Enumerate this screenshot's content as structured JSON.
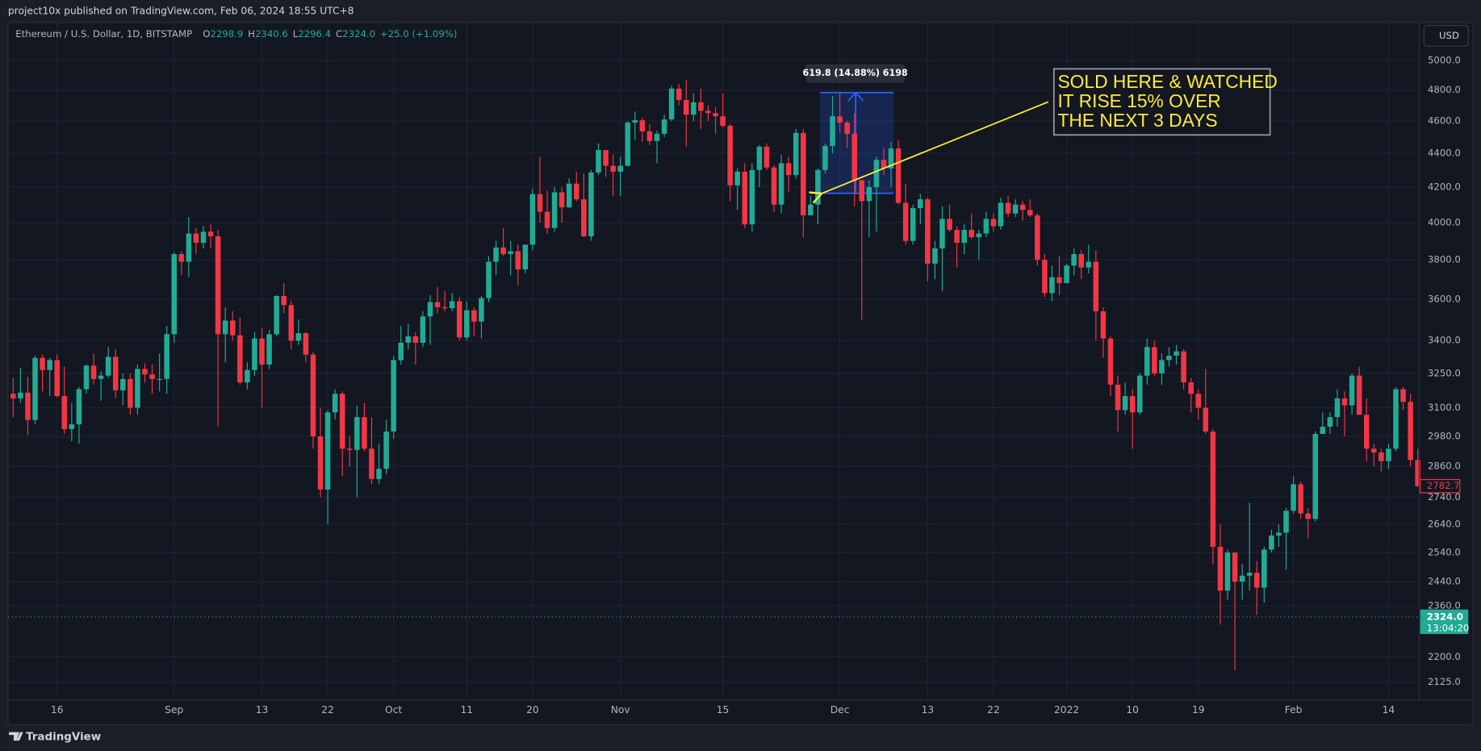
{
  "header": {
    "published": "project10x published on TradingView.com, Feb 06, 2024 18:55 UTC+8",
    "currency": "USD",
    "brand": "TradingView",
    "symbol": "Ethereum / U.S. Dollar, 1D, BITSTAMP",
    "ohlc": [
      {
        "label": "O",
        "value": "2298.9"
      },
      {
        "label": "H",
        "value": "2340.6"
      },
      {
        "label": "L",
        "value": "2296.4"
      },
      {
        "label": "C",
        "value": "2324.0"
      }
    ],
    "change": "+25.0 (+1.09%)"
  },
  "chart_data": {
    "type": "candlestick",
    "log_scale": true,
    "grid": true,
    "up_color": "#22ab94",
    "down_color": "#f23645",
    "categories": [
      null,
      null,
      null,
      null,
      null,
      null,
      "16",
      null,
      null,
      null,
      null,
      null,
      null,
      null,
      null,
      null,
      null,
      null,
      null,
      null,
      null,
      null,
      "Sep",
      null,
      null,
      null,
      null,
      null,
      null,
      null,
      null,
      null,
      null,
      null,
      "13",
      null,
      null,
      null,
      null,
      null,
      null,
      null,
      null,
      "22",
      null,
      null,
      null,
      null,
      null,
      null,
      null,
      null,
      "Oct",
      null,
      null,
      null,
      null,
      null,
      null,
      null,
      null,
      null,
      "11",
      null,
      null,
      null,
      null,
      null,
      null,
      null,
      null,
      "20",
      null,
      null,
      null,
      null,
      null,
      null,
      null,
      null,
      null,
      null,
      null,
      "Nov",
      null,
      null,
      null,
      null,
      null,
      null,
      null,
      null,
      null,
      null,
      null,
      null,
      null,
      "15",
      null,
      null,
      null,
      null,
      null,
      null,
      null,
      null,
      null,
      null,
      null,
      null,
      null,
      null,
      null,
      "Dec",
      null,
      null,
      null,
      null,
      null,
      null,
      null,
      null,
      null,
      null,
      null,
      "13",
      null,
      null,
      null,
      null,
      null,
      null,
      null,
      null,
      "22",
      null,
      null,
      null,
      null,
      null,
      null,
      null,
      null,
      null,
      "2022",
      null,
      null,
      null,
      null,
      null,
      null,
      null,
      null,
      "10",
      null,
      null,
      null,
      null,
      null,
      null,
      null,
      null,
      "19",
      null,
      null,
      null,
      null,
      null,
      null,
      null,
      null,
      null,
      null,
      null,
      null,
      "Feb",
      null,
      null,
      null,
      null,
      null,
      null,
      null,
      null,
      null,
      null,
      null,
      null,
      "14",
      null,
      null,
      null,
      null
    ],
    "open": [
      3160,
      3140,
      3165,
      3048,
      3320,
      3265,
      3310,
      3150,
      3010,
      3030,
      3180,
      3285,
      3225,
      3240,
      3325,
      3175,
      3225,
      3100,
      3270,
      3245,
      3225,
      3225,
      3430,
      3830,
      3790,
      3940,
      3890,
      3950,
      3925,
      3430,
      3495,
      3425,
      3210,
      3265,
      3410,
      3290,
      3430,
      3615,
      3570,
      3400,
      3435,
      3335,
      2980,
      2770,
      3080,
      3160,
      2930,
      2925,
      3060,
      2930,
      2810,
      2850,
      3000,
      3310,
      3390,
      3420,
      3390,
      3515,
      3585,
      3560,
      3555,
      3590,
      3415,
      3545,
      3490,
      3605,
      3790,
      3865,
      3830,
      3845,
      3750,
      3880,
      4160,
      4060,
      3970,
      4170,
      4085,
      4220,
      4130,
      3925,
      4285,
      4420,
      4325,
      4290,
      4325,
      4590,
      4605,
      4535,
      4475,
      4520,
      4610,
      4810,
      4735,
      4640,
      4720,
      4665,
      4650,
      4630,
      4570,
      4210,
      4290,
      3990,
      4300,
      4440,
      4315,
      4100,
      4340,
      4270,
      4525,
      4040,
      4100,
      4300,
      4445,
      4630,
      4590,
      4520,
      4240,
      4120,
      4200,
      4360,
      4310,
      4430,
      4110,
      3900,
      4080,
      4130,
      3780,
      3860,
      4020,
      3960,
      3890,
      3960,
      3920,
      3940,
      4020,
      3980,
      4110,
      4050,
      4100,
      4070,
      4040,
      3800,
      3630,
      3710,
      3680,
      3770,
      3830,
      3760,
      3790,
      3540,
      3410,
      3200,
      3090,
      3150,
      3080,
      3240,
      3370,
      3250,
      3310,
      3330,
      3350,
      3210,
      3160,
      3100,
      3000,
      2560,
      2410,
      2540,
      2440,
      2460,
      2470,
      2420,
      2550,
      2600,
      2610,
      2690,
      2790,
      2680,
      2660,
      2990,
      3020,
      3060,
      3140,
      3110,
      3240,
      3070,
      2930,
      2915,
      2880,
      2930,
      3180,
      3125,
      2885
    ],
    "high": [
      3230,
      3275,
      3235,
      3330,
      3335,
      3320,
      3335,
      3280,
      3120,
      3190,
      3290,
      3340,
      3260,
      3370,
      3360,
      3250,
      3250,
      3290,
      3295,
      3290,
      3340,
      3470,
      3840,
      3845,
      4030,
      3970,
      3980,
      3990,
      3960,
      3560,
      3540,
      3510,
      3300,
      3440,
      3460,
      3450,
      3620,
      3680,
      3590,
      3500,
      3440,
      3345,
      3100,
      3090,
      3180,
      3170,
      2980,
      3110,
      3120,
      3060,
      2950,
      3050,
      3330,
      3470,
      3480,
      3440,
      3540,
      3620,
      3660,
      3640,
      3630,
      3610,
      3590,
      3560,
      3615,
      3820,
      3900,
      3970,
      3900,
      3880,
      3880,
      4190,
      4380,
      4180,
      4200,
      4200,
      4250,
      4290,
      4280,
      4300,
      4460,
      4420,
      4390,
      4380,
      4600,
      4660,
      4620,
      4580,
      4540,
      4640,
      4830,
      4840,
      4870,
      4780,
      4810,
      4700,
      4690,
      4780,
      4580,
      4310,
      4340,
      4340,
      4450,
      4460,
      4330,
      4390,
      4380,
      4550,
      4550,
      4150,
      4310,
      4460,
      4760,
      4780,
      4600,
      4650,
      4240,
      4240,
      4380,
      4430,
      4470,
      4480,
      4220,
      4100,
      4160,
      4140,
      3900,
      4090,
      4100,
      3980,
      3990,
      4050,
      3960,
      4060,
      4050,
      4140,
      4150,
      4130,
      4120,
      4130,
      4050,
      3830,
      3770,
      3820,
      3780,
      3860,
      3850,
      3880,
      3850,
      3560,
      3420,
      3240,
      3210,
      3180,
      3250,
      3410,
      3400,
      3340,
      3370,
      3380,
      3360,
      3230,
      3180,
      3270,
      3010,
      2640,
      2550,
      2540,
      2500,
      2720,
      2510,
      2560,
      2620,
      2640,
      2700,
      2820,
      2800,
      2700,
      3000,
      3080,
      3080,
      3180,
      3170,
      3250,
      3280,
      3140,
      2950,
      2930,
      2950,
      3190,
      3190,
      3160,
      2930
    ],
    "low": [
      3060,
      3120,
      2985,
      3030,
      3170,
      3150,
      3145,
      2990,
      2960,
      2950,
      3160,
      3200,
      3130,
      3230,
      3140,
      3110,
      3070,
      3070,
      3210,
      3160,
      3170,
      3160,
      3390,
      3720,
      3710,
      3830,
      3860,
      3860,
      3020,
      3300,
      3400,
      3200,
      3180,
      3240,
      3100,
      3270,
      3420,
      3530,
      3360,
      3380,
      3300,
      2930,
      2740,
      2640,
      3050,
      2820,
      2860,
      2740,
      2920,
      2790,
      2790,
      2830,
      2970,
      3290,
      3360,
      3290,
      3370,
      3380,
      3530,
      3540,
      3540,
      3400,
      3400,
      3420,
      3410,
      3585,
      3720,
      3820,
      3720,
      3670,
      3730,
      3850,
      4000,
      3940,
      3950,
      4000,
      4080,
      4120,
      3920,
      3900,
      4270,
      4260,
      4150,
      4150,
      4320,
      4480,
      4470,
      4450,
      4340,
      4500,
      4600,
      4700,
      4440,
      4600,
      4550,
      4600,
      4520,
      4560,
      4120,
      4070,
      3970,
      3950,
      4200,
      4300,
      4060,
      4050,
      4170,
      4250,
      3920,
      4040,
      3990,
      4280,
      4400,
      4530,
      4430,
      4090,
      3500,
      3920,
      3950,
      4270,
      4200,
      4100,
      3880,
      3880,
      3990,
      3690,
      3700,
      3640,
      3950,
      3760,
      3830,
      3910,
      3800,
      3920,
      3950,
      3960,
      4030,
      4030,
      4010,
      4030,
      3770,
      3610,
      3590,
      3620,
      3680,
      3720,
      3700,
      3730,
      3400,
      3320,
      3150,
      3000,
      3070,
      2930,
      3070,
      3200,
      3240,
      3200,
      3280,
      3290,
      3180,
      3080,
      3050,
      2990,
      2500,
      2300,
      2380,
      2160,
      2380,
      2410,
      2330,
      2370,
      2540,
      2560,
      2480,
      2680,
      2660,
      2590,
      2650,
      2990,
      2990,
      3020,
      2980,
      3070,
      3070,
      2880,
      2860,
      2840,
      2850,
      2920,
      3090,
      2860,
      2780
    ],
    "close": [
      3140,
      3165,
      3048,
      3320,
      3265,
      3310,
      3150,
      3010,
      3030,
      3180,
      3285,
      3225,
      3240,
      3325,
      3175,
      3225,
      3100,
      3270,
      3245,
      3225,
      3225,
      3430,
      3830,
      3790,
      3940,
      3890,
      3950,
      3925,
      3430,
      3495,
      3425,
      3210,
      3265,
      3410,
      3290,
      3430,
      3615,
      3570,
      3400,
      3435,
      3335,
      2980,
      2770,
      3080,
      3160,
      2930,
      2925,
      3060,
      2930,
      2810,
      2850,
      3000,
      3310,
      3390,
      3420,
      3390,
      3515,
      3585,
      3560,
      3555,
      3590,
      3415,
      3545,
      3490,
      3605,
      3790,
      3865,
      3830,
      3845,
      3750,
      3880,
      4160,
      4060,
      3970,
      4170,
      4085,
      4220,
      4130,
      3925,
      4285,
      4420,
      4325,
      4290,
      4325,
      4590,
      4605,
      4535,
      4475,
      4520,
      4610,
      4810,
      4735,
      4640,
      4720,
      4665,
      4650,
      4630,
      4570,
      4210,
      4290,
      3990,
      4300,
      4440,
      4315,
      4100,
      4340,
      4270,
      4525,
      4040,
      4100,
      4300,
      4445,
      4630,
      4590,
      4520,
      4240,
      4120,
      4200,
      4360,
      4310,
      4430,
      4110,
      3900,
      4080,
      4130,
      3780,
      3860,
      4020,
      3960,
      3890,
      3960,
      3920,
      3940,
      4020,
      3980,
      4110,
      4050,
      4100,
      4070,
      4040,
      3800,
      3630,
      3710,
      3680,
      3770,
      3830,
      3760,
      3790,
      3540,
      3410,
      3200,
      3090,
      3150,
      3080,
      3240,
      3370,
      3250,
      3310,
      3330,
      3350,
      3210,
      3160,
      3100,
      3000,
      2560,
      2410,
      2540,
      2440,
      2460,
      2470,
      2420,
      2550,
      2600,
      2610,
      2690,
      2790,
      2680,
      2660,
      2990,
      3020,
      3060,
      3140,
      3110,
      3240,
      3070,
      2930,
      2915,
      2880,
      2930,
      3180,
      3125,
      2885,
      2782.7
    ],
    "ylim": [
      2073,
      5267
    ],
    "yticks": [
      {
        "value": 5000,
        "label": "5000.0"
      },
      {
        "value": 4800,
        "label": "4800.0"
      },
      {
        "value": 4600,
        "label": "4600.0"
      },
      {
        "value": 4400,
        "label": "4400.0"
      },
      {
        "value": 4200,
        "label": "4200.0"
      },
      {
        "value": 4000,
        "label": "4000.0"
      },
      {
        "value": 3800,
        "label": "3800.0"
      },
      {
        "value": 3600,
        "label": "3600.0"
      },
      {
        "value": 3400,
        "label": "3400.0"
      },
      {
        "value": 3250,
        "label": "3250.0"
      },
      {
        "value": 3100,
        "label": "3100.0"
      },
      {
        "value": 2980,
        "label": "2980.0"
      },
      {
        "value": 2860,
        "label": "2860.0"
      },
      {
        "value": 2740,
        "label": "2740.0"
      },
      {
        "value": 2640,
        "label": "2640.0"
      },
      {
        "value": 2540,
        "label": "2540.0"
      },
      {
        "value": 2440,
        "label": "2440.0"
      },
      {
        "value": 2360,
        "label": "2360.0"
      },
      {
        "value": 2200,
        "label": "2200.0"
      },
      {
        "value": 2125,
        "label": "2125.0"
      }
    ],
    "last_price": {
      "value": 2324,
      "label": "2324.0"
    },
    "countdown": "13:04:20",
    "measure": {
      "low": 4164.2,
      "high": 4784,
      "label": "619.8 (14.88%) 6198",
      "color": "#2962ff"
    },
    "annotation": [
      "SOLD HERE & WATCHED",
      "IT RISE 15% OVER",
      "THE NEXT 3 DAYS"
    ],
    "annotation_color": "#ffeb3b"
  }
}
